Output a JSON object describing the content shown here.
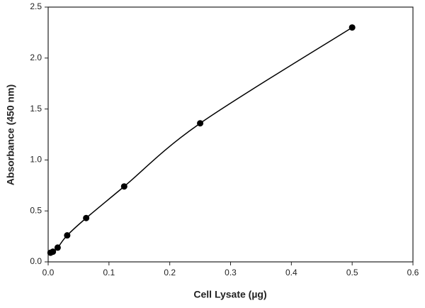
{
  "chart_data": {
    "type": "scatter",
    "x_label": "Cell Lysate (µg)",
    "y_label": "Absorbance (450 nm)",
    "series": [
      {
        "name": "Absorbance",
        "color": "#000000",
        "x": [
          0.0039,
          0.0078,
          0.0156,
          0.0313,
          0.0625,
          0.125,
          0.25,
          0.5
        ],
        "values": [
          0.09,
          0.1,
          0.14,
          0.26,
          0.43,
          0.74,
          1.36,
          2.3
        ]
      }
    ],
    "xlim": [
      0,
      0.6
    ],
    "xticks": [
      {
        "value": 0,
        "label": "0.0"
      },
      0.1,
      0.2,
      0.3,
      0.4,
      0.5,
      0.6
    ],
    "ylim": [
      0,
      2.5
    ],
    "yticks": [
      {
        "value": 0,
        "label": "0.0"
      },
      0.5,
      {
        "value": 1,
        "label": "1.0"
      },
      1.5,
      {
        "value": 2,
        "label": "2.0"
      },
      2.5
    ],
    "fit_line": true
  }
}
